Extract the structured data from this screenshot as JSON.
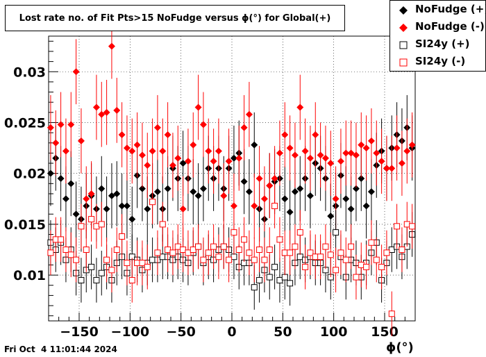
{
  "chart_data": {
    "type": "scatter",
    "title": "Lost rate no. of Fit Pts>15 NoFudge versus ϕ(°) for Global(+)",
    "xlabel": "ϕ(°)",
    "ylabel": "",
    "xlim": [
      -180,
      180
    ],
    "ylim": [
      0.0055,
      0.0335
    ],
    "xticks": [
      -150,
      -100,
      -50,
      0,
      50,
      100,
      150
    ],
    "xtick_labels": [
      "−150",
      "−100",
      "−50",
      "0",
      "50",
      "100",
      "150"
    ],
    "yticks": [
      0.01,
      0.015,
      0.02,
      0.025,
      0.03
    ],
    "ytick_labels": [
      "0.01",
      "0.015",
      "0.02",
      "0.025",
      "0.03"
    ],
    "grid": true,
    "legend_position": "top-right",
    "series": [
      {
        "name": "NoFudge (+)",
        "marker": "filled-diamond",
        "color": "#000000",
        "x": [
          -178,
          -173,
          -168,
          -163,
          -158,
          -153,
          -148,
          -143,
          -138,
          -133,
          -128,
          -123,
          -118,
          -113,
          -108,
          -103,
          -98,
          -93,
          -88,
          -83,
          -78,
          -73,
          -68,
          -63,
          -58,
          -53,
          -48,
          -43,
          -38,
          -33,
          -28,
          -23,
          -18,
          -13,
          -8,
          -3,
          2,
          7,
          12,
          17,
          22,
          27,
          32,
          37,
          42,
          47,
          52,
          57,
          62,
          67,
          72,
          77,
          82,
          87,
          92,
          97,
          102,
          107,
          112,
          117,
          122,
          127,
          132,
          137,
          142,
          147,
          152,
          157,
          162,
          167,
          172,
          177
        ],
        "y": [
          0.02,
          0.0215,
          0.0195,
          0.0175,
          0.019,
          0.016,
          0.0155,
          0.0168,
          0.0178,
          0.0165,
          0.0185,
          0.0165,
          0.0178,
          0.018,
          0.0168,
          0.0168,
          0.0155,
          0.0198,
          0.0185,
          0.0165,
          0.0178,
          0.0182,
          0.0165,
          0.0185,
          0.0205,
          0.0195,
          0.021,
          0.0195,
          0.0182,
          0.0178,
          0.0185,
          0.0205,
          0.0195,
          0.0205,
          0.0185,
          0.0205,
          0.0215,
          0.022,
          0.0192,
          0.0182,
          0.0228,
          0.0165,
          0.0155,
          0.0188,
          0.0192,
          0.0195,
          0.0175,
          0.0162,
          0.0182,
          0.0185,
          0.0195,
          0.0178,
          0.021,
          0.0205,
          0.0195,
          0.0158,
          0.0168,
          0.0198,
          0.0175,
          0.0165,
          0.0185,
          0.0195,
          0.0168,
          0.0182,
          0.0208,
          0.0222,
          0.0205,
          0.0225,
          0.0238,
          0.0232,
          0.0245,
          0.0225
        ]
      },
      {
        "name": "NoFudge (-)",
        "marker": "filled-diamond",
        "color": "#ff0000",
        "x": [
          -178,
          -173,
          -168,
          -163,
          -158,
          -153,
          -148,
          -143,
          -138,
          -133,
          -128,
          -123,
          -118,
          -113,
          -108,
          -103,
          -98,
          -93,
          -88,
          -83,
          -78,
          -73,
          -68,
          -63,
          -58,
          -53,
          -48,
          -43,
          -38,
          -33,
          -28,
          -23,
          -18,
          -13,
          -8,
          -3,
          2,
          7,
          12,
          17,
          22,
          27,
          32,
          37,
          42,
          47,
          52,
          57,
          62,
          67,
          72,
          77,
          82,
          87,
          92,
          97,
          102,
          107,
          112,
          117,
          122,
          127,
          132,
          137,
          142,
          147,
          152,
          157,
          162,
          167,
          172,
          177
        ],
        "y": [
          0.0245,
          0.023,
          0.0248,
          0.0222,
          0.0248,
          0.03,
          0.0232,
          0.0175,
          0.018,
          0.0265,
          0.0258,
          0.026,
          0.0325,
          0.0262,
          0.0238,
          0.0225,
          0.0222,
          0.0228,
          0.0218,
          0.0208,
          0.0222,
          0.0245,
          0.0222,
          0.0238,
          0.0208,
          0.0215,
          0.0165,
          0.0212,
          0.0228,
          0.0265,
          0.0248,
          0.0222,
          0.0212,
          0.0222,
          0.0178,
          0.0212,
          0.0168,
          0.0215,
          0.0245,
          0.0258,
          0.0168,
          0.0195,
          0.0175,
          0.0188,
          0.0195,
          0.022,
          0.0238,
          0.0225,
          0.0218,
          0.0265,
          0.0222,
          0.0215,
          0.0238,
          0.0218,
          0.0215,
          0.021,
          0.0175,
          0.0212,
          0.022,
          0.022,
          0.0218,
          0.0228,
          0.0225,
          0.0232,
          0.022,
          0.0212,
          0.0205,
          0.0205,
          0.0225,
          0.021,
          0.0222,
          0.0228
        ]
      },
      {
        "name": "SI24y (+)",
        "marker": "open-square",
        "color": "#000000",
        "x": [
          -178,
          -173,
          -168,
          -163,
          -158,
          -153,
          -148,
          -143,
          -138,
          -133,
          -128,
          -123,
          -118,
          -113,
          -108,
          -103,
          -98,
          -93,
          -88,
          -83,
          -78,
          -73,
          -68,
          -63,
          -58,
          -53,
          -48,
          -43,
          -38,
          -33,
          -28,
          -23,
          -18,
          -13,
          -8,
          -3,
          2,
          7,
          12,
          17,
          22,
          27,
          32,
          37,
          42,
          47,
          52,
          57,
          62,
          67,
          72,
          77,
          82,
          87,
          92,
          97,
          102,
          107,
          112,
          117,
          122,
          127,
          132,
          137,
          142,
          147,
          152,
          157,
          162,
          167,
          172,
          177
        ],
        "y": [
          0.0132,
          0.0125,
          0.0132,
          0.0115,
          0.0125,
          0.0102,
          0.0095,
          0.0105,
          0.0108,
          0.0095,
          0.0102,
          0.0108,
          0.0095,
          0.0112,
          0.0118,
          0.0102,
          0.0118,
          0.0115,
          0.0105,
          0.0112,
          0.0115,
          0.0115,
          0.0118,
          0.0118,
          0.0115,
          0.0118,
          0.0115,
          0.0112,
          0.0122,
          0.0128,
          0.0112,
          0.0118,
          0.0115,
          0.0125,
          0.0128,
          0.0125,
          0.0118,
          0.0108,
          0.0112,
          0.0112,
          0.0088,
          0.0095,
          0.0105,
          0.0098,
          0.0108,
          0.0095,
          0.0098,
          0.0092,
          0.0112,
          0.0118,
          0.0115,
          0.0118,
          0.0112,
          0.0112,
          0.0105,
          0.0098,
          0.0142,
          0.0118,
          0.0098,
          0.0115,
          0.0112,
          0.0098,
          0.0112,
          0.0122,
          0.0132,
          0.0095,
          0.0112,
          0.0125,
          0.0128,
          0.0118,
          0.0128,
          0.014
        ]
      },
      {
        "name": "SI24y (-)",
        "marker": "open-square",
        "color": "#ff0000",
        "x": [
          -178,
          -173,
          -168,
          -163,
          -158,
          -153,
          -148,
          -143,
          -138,
          -133,
          -128,
          -123,
          -118,
          -113,
          -108,
          -103,
          -98,
          -93,
          -88,
          -83,
          -78,
          -73,
          -68,
          -63,
          -58,
          -53,
          -48,
          -43,
          -38,
          -33,
          -28,
          -23,
          -18,
          -13,
          -8,
          -3,
          2,
          7,
          12,
          17,
          22,
          27,
          32,
          37,
          42,
          47,
          52,
          57,
          62,
          67,
          72,
          77,
          82,
          87,
          92,
          97,
          102,
          107,
          112,
          117,
          122,
          127,
          132,
          137,
          142,
          147,
          152,
          157,
          162,
          167,
          172,
          177
        ],
        "y": [
          0.0122,
          0.0135,
          0.0135,
          0.0125,
          0.012,
          0.0115,
          0.0148,
          0.0125,
          0.0155,
          0.0148,
          0.015,
          0.0115,
          0.0105,
          0.0125,
          0.0138,
          0.0112,
          0.0095,
          0.0112,
          0.0112,
          0.0108,
          0.0172,
          0.0122,
          0.015,
          0.0125,
          0.0122,
          0.0128,
          0.0125,
          0.0122,
          0.0125,
          0.0128,
          0.0115,
          0.0122,
          0.0128,
          0.0118,
          0.0128,
          0.0115,
          0.0142,
          0.0125,
          0.0135,
          0.0122,
          0.0115,
          0.0125,
          0.0115,
          0.0125,
          0.0168,
          0.0135,
          0.0122,
          0.0122,
          0.0128,
          0.0142,
          0.0108,
          0.0122,
          0.0118,
          0.0118,
          0.0128,
          0.012,
          0.0105,
          0.0122,
          0.0115,
          0.0128,
          0.0098,
          0.011,
          0.0108,
          0.0132,
          0.0115,
          0.0108,
          0.0122,
          0.0062,
          0.0148,
          0.0125,
          0.015,
          0.0148
        ]
      }
    ]
  },
  "footer": {
    "timestamp": "Fri Oct  4 11:01:44 2024"
  }
}
